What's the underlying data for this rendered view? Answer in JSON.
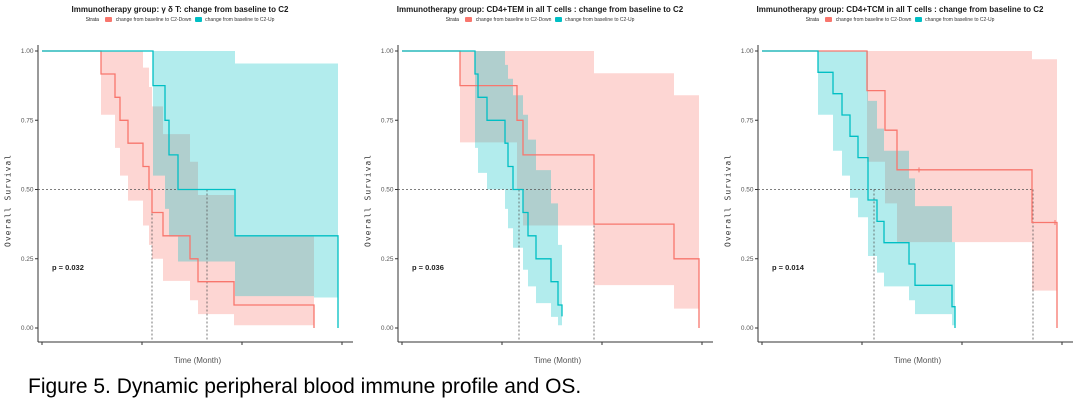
{
  "figure": {
    "caption": "Figure 5. Dynamic peripheral blood immune profile and OS."
  },
  "legend": {
    "strata_label": "Strata",
    "down_label": "change from baseline to C2-Down",
    "up_label": "change from baseline to C2-Up"
  },
  "axes": {
    "ylabel": "Overall Survival",
    "xlabel": "Time (Month)",
    "yticks": [
      1,
      0.75,
      0.5,
      0.25,
      0
    ],
    "ytick_labels": [
      "1.00",
      "0.75",
      "0.50",
      "0.25",
      "0.00"
    ],
    "xticks": [
      0,
      10,
      20,
      30
    ],
    "xlim": [
      0,
      31
    ],
    "ylim": [
      0,
      1
    ],
    "grid": false,
    "reference_line": 0.5
  },
  "colors": {
    "down": "#F8766D",
    "up": "#00BFC4",
    "down_fill": "rgba(248,118,109,0.30)",
    "up_fill": "rgba(0,191,196,0.30)",
    "dashed": "#555555",
    "axis": "#333333"
  },
  "chart_data": [
    {
      "type": "line",
      "subtype": "kaplan-meier-step",
      "title": "Immunotherapy group:  γ δ T: change from baseline to C2",
      "p_value": "p = 0.032",
      "medians": [
        11.0,
        16.5
      ],
      "series": [
        {
          "name": "change from baseline to C2-Down",
          "group": "down",
          "steps": [
            [
              0,
              1
            ],
            [
              5.9,
              0.917
            ],
            [
              7.3,
              0.833
            ],
            [
              7.8,
              0.75
            ],
            [
              8.6,
              0.667
            ],
            [
              10.1,
              0.583
            ],
            [
              10.7,
              0.5
            ],
            [
              11.0,
              0.417
            ],
            [
              12.1,
              0.333
            ],
            [
              14.8,
              0.25
            ],
            [
              15.6,
              0.167
            ],
            [
              19.2,
              0.083
            ],
            [
              27.2,
              0
            ]
          ],
          "upper": [
            [
              0,
              1
            ],
            [
              10.1,
              0.94
            ],
            [
              10.7,
              0.87
            ],
            [
              11.0,
              0.8
            ],
            [
              12.1,
              0.7
            ],
            [
              14.8,
              0.6
            ],
            [
              15.6,
              0.48
            ],
            [
              19.2,
              0.33
            ],
            [
              27.2,
              0.33
            ]
          ],
          "lower": [
            [
              0,
              1
            ],
            [
              5.9,
              0.77
            ],
            [
              7.3,
              0.65
            ],
            [
              7.8,
              0.55
            ],
            [
              8.6,
              0.46
            ],
            [
              10.1,
              0.37
            ],
            [
              10.7,
              0.3
            ],
            [
              11.0,
              0.25
            ],
            [
              12.1,
              0.17
            ],
            [
              14.8,
              0.1
            ],
            [
              15.6,
              0.05
            ],
            [
              19.2,
              0.01
            ],
            [
              27.2,
              0.01
            ]
          ],
          "censor": []
        },
        {
          "name": "change from baseline to C2-Up",
          "group": "up",
          "steps": [
            [
              0,
              1
            ],
            [
              11.1,
              0.875
            ],
            [
              12.3,
              0.75
            ],
            [
              12.7,
              0.625
            ],
            [
              13.6,
              0.5
            ],
            [
              19.3,
              0.333
            ],
            [
              29.6,
              0
            ]
          ],
          "upper": [
            [
              0,
              1
            ],
            [
              13.6,
              1
            ],
            [
              19.3,
              0.955
            ],
            [
              29.6,
              0.955
            ]
          ],
          "lower": [
            [
              0,
              1
            ],
            [
              11.1,
              0.55
            ],
            [
              12.3,
              0.43
            ],
            [
              12.7,
              0.33
            ],
            [
              13.6,
              0.24
            ],
            [
              19.3,
              0.115
            ],
            [
              27.2,
              0.11
            ],
            [
              29.6,
              0.05
            ]
          ],
          "censor": []
        }
      ]
    },
    {
      "type": "line",
      "subtype": "kaplan-meier-step",
      "title": "Immunotherapy group:  CD4+TEM in all T cells : change from baseline to C2",
      "p_value": "p = 0.036",
      "medians": [
        11.7,
        19.2
      ],
      "series": [
        {
          "name": "change from baseline to C2-Down",
          "group": "down",
          "steps": [
            [
              0,
              1
            ],
            [
              5.8,
              0.875
            ],
            [
              11.5,
              0.75
            ],
            [
              12.1,
              0.625
            ],
            [
              19.2,
              0.375
            ],
            [
              27.2,
              0.25
            ],
            [
              29.7,
              0
            ]
          ],
          "upper": [
            [
              0,
              1
            ],
            [
              19.2,
              0.92
            ],
            [
              27.2,
              0.84
            ],
            [
              29.7,
              0.84
            ]
          ],
          "lower": [
            [
              0,
              1
            ],
            [
              5.8,
              0.67
            ],
            [
              11.5,
              0.5
            ],
            [
              12.1,
              0.37
            ],
            [
              19.2,
              0.155
            ],
            [
              27.2,
              0.07
            ],
            [
              29.7,
              0.07
            ]
          ],
          "censor": []
        },
        {
          "name": "change from baseline to C2-Up",
          "group": "up",
          "steps": [
            [
              0,
              1
            ],
            [
              7.3,
              0.917
            ],
            [
              7.6,
              0.833
            ],
            [
              8.5,
              0.75
            ],
            [
              10.3,
              0.667
            ],
            [
              10.6,
              0.583
            ],
            [
              11.1,
              0.5
            ],
            [
              12.1,
              0.417
            ],
            [
              12.6,
              0.333
            ],
            [
              13.4,
              0.25
            ],
            [
              14.9,
              0.167
            ],
            [
              15.6,
              0.083
            ],
            [
              16.0,
              0.042
            ]
          ],
          "upper": [
            [
              0,
              1
            ],
            [
              10.3,
              0.95
            ],
            [
              10.6,
              0.9
            ],
            [
              11.1,
              0.84
            ],
            [
              12.1,
              0.77
            ],
            [
              12.6,
              0.68
            ],
            [
              13.4,
              0.57
            ],
            [
              14.9,
              0.45
            ],
            [
              15.6,
              0.3
            ],
            [
              16.0,
              0.22
            ]
          ],
          "lower": [
            [
              0,
              1
            ],
            [
              7.3,
              0.65
            ],
            [
              7.6,
              0.56
            ],
            [
              8.5,
              0.5
            ],
            [
              10.3,
              0.43
            ],
            [
              10.6,
              0.36
            ],
            [
              11.1,
              0.29
            ],
            [
              12.1,
              0.21
            ],
            [
              12.6,
              0.15
            ],
            [
              13.4,
              0.09
            ],
            [
              14.9,
              0.04
            ],
            [
              15.6,
              0.01
            ],
            [
              16.0,
              0.01
            ]
          ],
          "censor": []
        }
      ]
    },
    {
      "type": "line",
      "subtype": "kaplan-meier-step",
      "title": "Immunotherapy group:  CD4+TCM in all T cells : change from baseline to C2",
      "p_value": "p = 0.014",
      "medians": [
        11.2,
        27.1
      ],
      "series": [
        {
          "name": "change from baseline to C2-Down",
          "group": "down",
          "steps": [
            [
              0,
              1
            ],
            [
              10.5,
              0.857
            ],
            [
              12.3,
              0.714
            ],
            [
              13.5,
              0.571
            ],
            [
              27.0,
              0.381
            ],
            [
              29.5,
              0
            ]
          ],
          "upper": [
            [
              0,
              1
            ],
            [
              27.0,
              0.97
            ],
            [
              29.5,
              0.97
            ]
          ],
          "lower": [
            [
              0,
              1
            ],
            [
              10.5,
              0.6
            ],
            [
              12.3,
              0.45
            ],
            [
              13.5,
              0.31
            ],
            [
              27.0,
              0.135
            ],
            [
              29.5,
              0.135
            ]
          ],
          "censor": [
            [
              15.7,
              0.571
            ],
            [
              29.3,
              0.381
            ]
          ]
        },
        {
          "name": "change from baseline to C2-Up",
          "group": "up",
          "steps": [
            [
              0,
              1
            ],
            [
              5.6,
              0.923
            ],
            [
              7.1,
              0.846
            ],
            [
              8.0,
              0.769
            ],
            [
              8.8,
              0.692
            ],
            [
              9.6,
              0.615
            ],
            [
              10.6,
              0.462
            ],
            [
              11.5,
              0.385
            ],
            [
              12.2,
              0.308
            ],
            [
              14.7,
              0.231
            ],
            [
              15.3,
              0.154
            ],
            [
              19.0,
              0.077
            ],
            [
              19.3,
              0
            ]
          ],
          "upper": [
            [
              0,
              1
            ],
            [
              9.6,
              1
            ],
            [
              10.6,
              0.82
            ],
            [
              11.5,
              0.72
            ],
            [
              12.2,
              0.64
            ],
            [
              14.7,
              0.54
            ],
            [
              15.3,
              0.44
            ],
            [
              19.0,
              0.31
            ],
            [
              19.3,
              0.31
            ]
          ],
          "lower": [
            [
              0,
              1
            ],
            [
              5.6,
              0.77
            ],
            [
              7.1,
              0.64
            ],
            [
              8.0,
              0.55
            ],
            [
              8.8,
              0.47
            ],
            [
              9.6,
              0.4
            ],
            [
              10.6,
              0.26
            ],
            [
              11.5,
              0.2
            ],
            [
              12.2,
              0.15
            ],
            [
              14.7,
              0.1
            ],
            [
              15.3,
              0.05
            ],
            [
              19.0,
              0.01
            ],
            [
              19.3,
              0.01
            ]
          ],
          "censor": []
        }
      ]
    }
  ]
}
